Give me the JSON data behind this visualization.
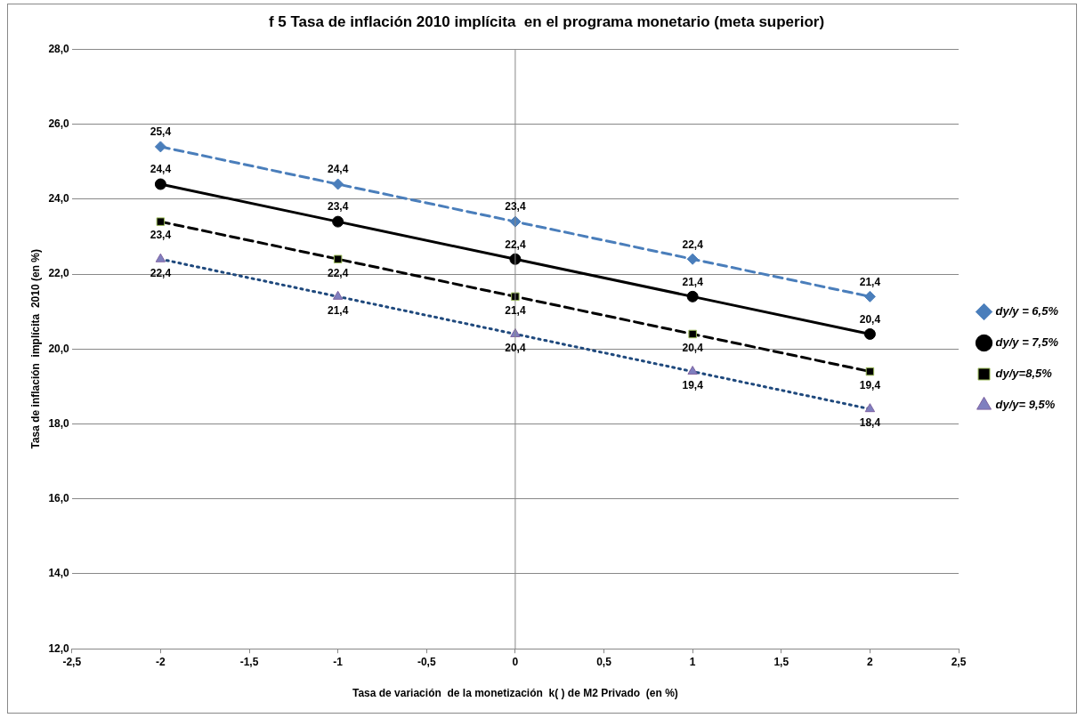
{
  "chart_data": {
    "type": "line",
    "title": "f 5 Tasa de inflación 2010 implícita  en el programa monetario (meta superior)",
    "xlabel": "Tasa de variación  de la monetización  k( ) de M2 Privado  (en %)",
    "ylabel": "Tasa de inflación  implícita  2010 (en %)",
    "x": [
      -2,
      -1,
      0,
      1,
      2
    ],
    "series": [
      {
        "name": "dy/y = 6,5%",
        "color": "#4a7ebb",
        "values": [
          25.4,
          24.4,
          23.4,
          22.4,
          21.4
        ],
        "value_labels": [
          "25,4",
          "24,4",
          "23,4",
          "22,4",
          "21,4"
        ],
        "marker": "diamond",
        "line_style": "dashed"
      },
      {
        "name": "dy/y = 7,5%",
        "color": "#000000",
        "values": [
          24.4,
          23.4,
          22.4,
          21.4,
          20.4
        ],
        "value_labels": [
          "24,4",
          "23,4",
          "22,4",
          "21,4",
          "20,4"
        ],
        "marker": "circle",
        "line_style": "solid"
      },
      {
        "name": "dy/y=8,5%",
        "color": "#000000",
        "values": [
          23.4,
          22.4,
          21.4,
          20.4,
          19.4
        ],
        "value_labels": [
          "23,4",
          "22,4",
          "21,4",
          "20,4",
          "19,4"
        ],
        "marker": "square",
        "line_style": "dashed"
      },
      {
        "name": "dy/y= 9,5%",
        "color": "#1f497d",
        "values": [
          22.4,
          21.4,
          20.4,
          19.4,
          18.4
        ],
        "value_labels": [
          "22,4",
          "21,4",
          "20,4",
          "19,4",
          "18,4"
        ],
        "marker": "triangle",
        "line_style": "dotted"
      }
    ],
    "xlim": [
      -2.5,
      2.5
    ],
    "xticks": [
      {
        "value": -2.5,
        "label": "-2,5"
      },
      {
        "value": -2,
        "label": "-2"
      },
      {
        "value": -1.5,
        "label": "-1,5"
      },
      {
        "value": -1,
        "label": "-1"
      },
      {
        "value": -0.5,
        "label": "-0,5"
      },
      {
        "value": 0,
        "label": "0"
      },
      {
        "value": 0.5,
        "label": "0,5"
      },
      {
        "value": 1,
        "label": "1"
      },
      {
        "value": 1.5,
        "label": "1,5"
      },
      {
        "value": 2,
        "label": "2"
      },
      {
        "value": 2.5,
        "label": "2,5"
      }
    ],
    "ylim": [
      12,
      28
    ],
    "yticks": [
      {
        "value": 12,
        "label": "12,0"
      },
      {
        "value": 14,
        "label": "14,0"
      },
      {
        "value": 16,
        "label": "16,0"
      },
      {
        "value": 18,
        "label": "18,0"
      },
      {
        "value": 20,
        "label": "20,0"
      },
      {
        "value": 22,
        "label": "22,0"
      },
      {
        "value": 24,
        "label": "24,0"
      },
      {
        "value": 26,
        "label": "26,0"
      },
      {
        "value": 28,
        "label": "28,0"
      }
    ],
    "ref_lines": [
      {
        "axis": "x",
        "value": 0,
        "color": "#888888"
      }
    ],
    "grid": "y",
    "legend": "right"
  }
}
